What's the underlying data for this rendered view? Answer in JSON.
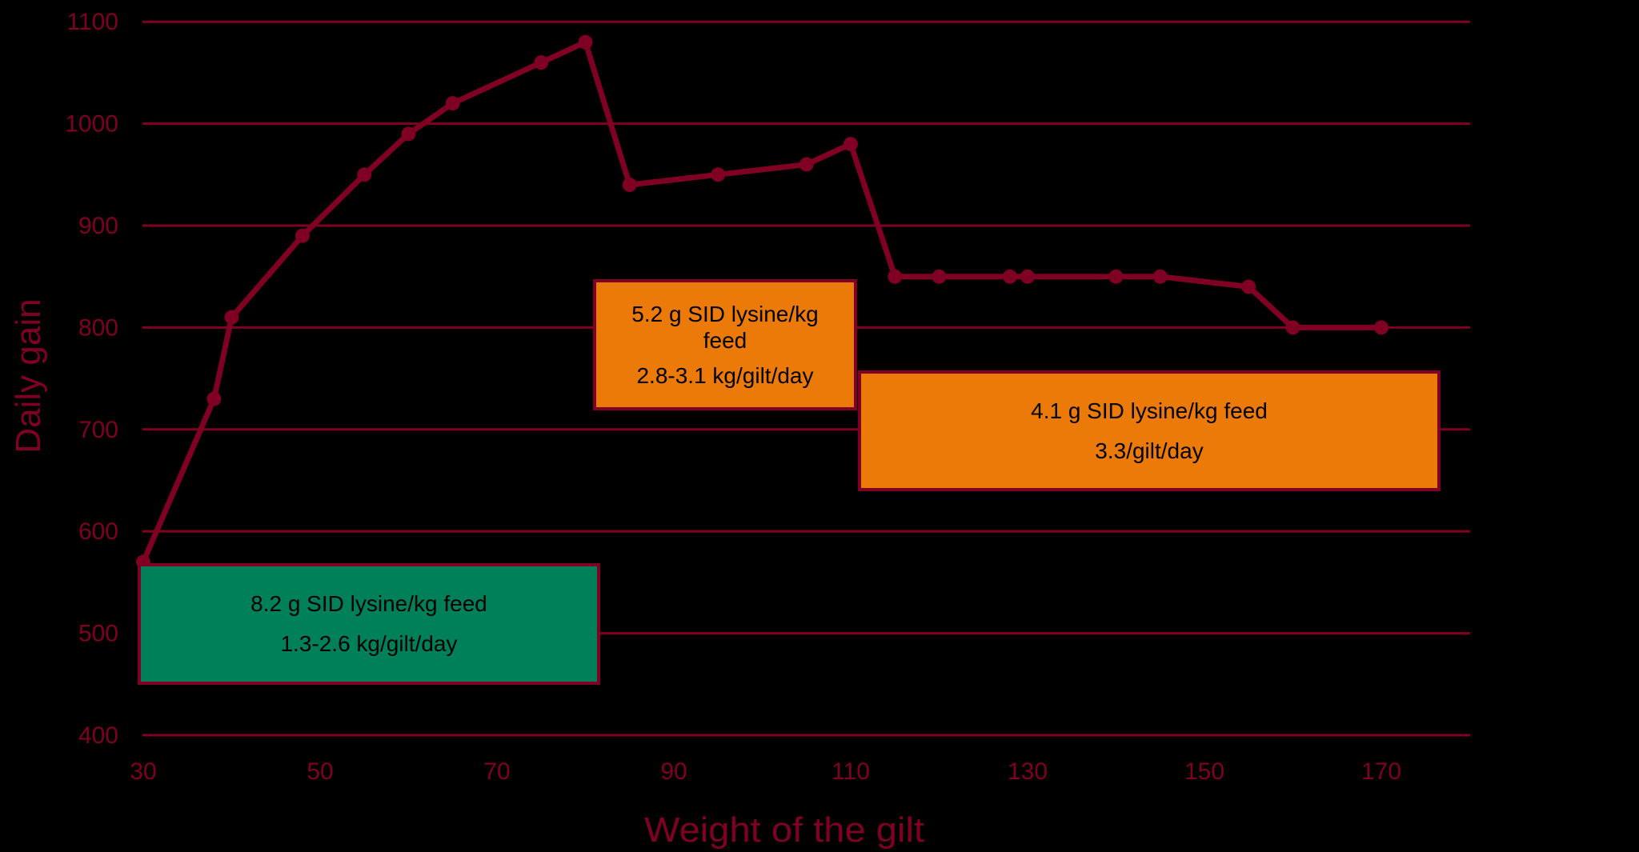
{
  "chart_data": {
    "type": "line",
    "title": "",
    "xlabel": "Weight of the gilt",
    "ylabel": "Daily gain",
    "xlim": [
      30,
      170
    ],
    "ylim": [
      400,
      1100
    ],
    "x_ticks": [
      30,
      50,
      70,
      90,
      110,
      130,
      150,
      170
    ],
    "y_ticks": [
      400,
      500,
      600,
      700,
      800,
      900,
      1000,
      1100
    ],
    "grid": "horizontal",
    "legend": null,
    "series": [
      {
        "name": "Daily gain",
        "color": "#7f0022",
        "x": [
          30,
          38,
          40,
          48,
          55,
          60,
          65,
          75,
          80,
          85,
          95,
          105,
          110,
          115,
          120,
          128,
          130,
          140,
          145,
          155,
          160,
          170
        ],
        "values": [
          570,
          730,
          810,
          890,
          950,
          990,
          1020,
          1060,
          1080,
          940,
          950,
          960,
          980,
          850,
          850,
          850,
          850,
          850,
          850,
          840,
          800,
          800
        ]
      }
    ],
    "annotations": [
      {
        "lines": [
          "8.2 g SID lysine/kg feed",
          "1.3-2.6 kg/gilt/day"
        ],
        "color": "#008058"
      },
      {
        "lines": [
          "5.2 g SID lysine/kg feed",
          "2.8-3.1 kg/gilt/day"
        ],
        "color": "#ec7a08"
      },
      {
        "lines": [
          "4.1 g SID lysine/kg feed",
          "3.3/gilt/day"
        ],
        "color": "#ec7a08"
      }
    ]
  },
  "boxes": {
    "phase1": {
      "line1": "8.2 g SID lysine/kg feed",
      "line2": "1.3-2.6 kg/gilt/day"
    },
    "phase2": {
      "line1": "5.2 g SID lysine/kg feed",
      "line2": "2.8-3.1 kg/gilt/day"
    },
    "phase3": {
      "line1": "4.1 g SID lysine/kg feed",
      "line2": "3.3/gilt/day"
    }
  },
  "colors": {
    "line": "#7f0022",
    "background": "#000000",
    "green": "#008058",
    "orange": "#ec7a08"
  }
}
